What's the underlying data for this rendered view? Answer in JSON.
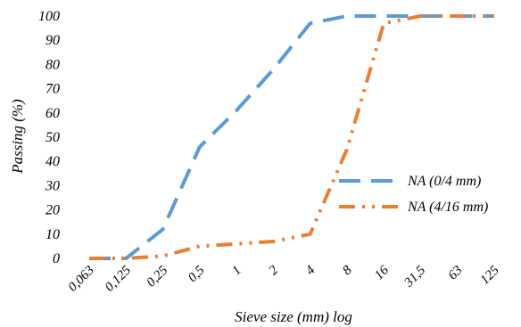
{
  "chart_data": {
    "type": "line",
    "categories": [
      "0,063",
      "0,125",
      "0,25",
      "0,5",
      "1",
      "2",
      "4",
      "8",
      "16",
      "31,5",
      "63",
      "125"
    ],
    "xlabel": "Sieve size (mm) log",
    "ylabel": "Passing (%)",
    "ylim": [
      0,
      100
    ],
    "yticks": [
      "0",
      "10",
      "20",
      "30",
      "40",
      "50",
      "60",
      "70",
      "80",
      "90",
      "100"
    ],
    "grid": false,
    "legend_position": "right",
    "series": [
      {
        "name": "NA (0/4 mm)",
        "color": "#5B9BD5",
        "style": "dashed",
        "values": [
          0,
          0,
          12,
          46,
          61,
          78,
          97,
          100,
          100,
          100,
          100,
          100
        ]
      },
      {
        "name": "NA (4/16 mm)",
        "color": "#ED7D31",
        "style": "dash-dot-dot",
        "values": [
          0,
          0,
          1,
          5,
          6,
          7,
          10,
          45,
          97,
          100,
          100,
          100
        ]
      }
    ]
  }
}
